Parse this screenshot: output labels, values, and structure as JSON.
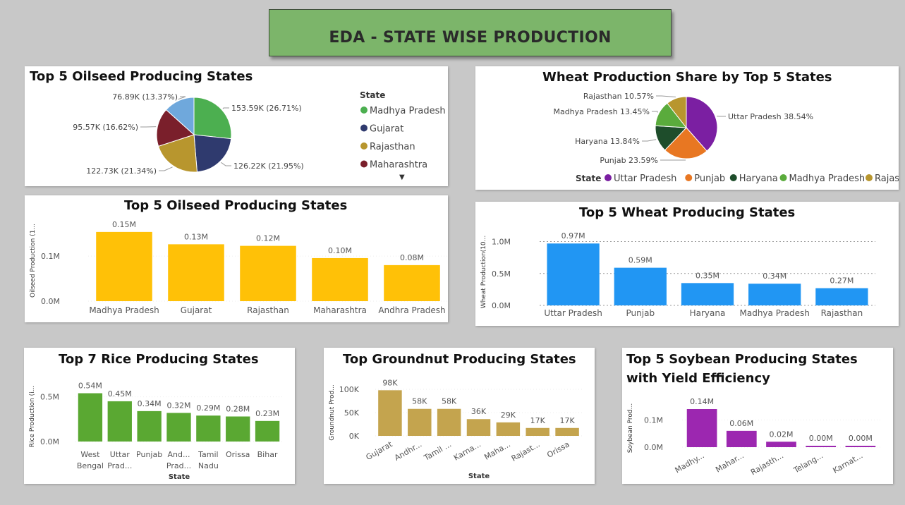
{
  "page": {
    "title": "EDA - STATE WISE PRODUCTION"
  },
  "legend_titles": {
    "oilseed_pie": "State",
    "wheat_pie": "State"
  },
  "chart_data": [
    {
      "id": "oilseed_pie",
      "type": "pie",
      "title": "Top 5 Oilseed Producing States",
      "slices": [
        {
          "label": "Madhya Pradesh",
          "value": 153.59,
          "display": "153.59K (26.71%)",
          "color": "#4caf50"
        },
        {
          "label": "Gujarat",
          "value": 126.22,
          "display": "126.22K (21.95%)",
          "color": "#2f3a6e"
        },
        {
          "label": "Rajasthan",
          "value": 122.73,
          "display": "122.73K (21.34%)",
          "color": "#b8962e"
        },
        {
          "label": "Maharashtra",
          "value": 95.57,
          "display": "95.57K (16.62%)",
          "color": "#7a1f2b"
        },
        {
          "label": "",
          "value": 76.89,
          "display": "76.89K (13.37%)",
          "color": "#6fa8dc"
        }
      ],
      "legend": [
        "Madhya Pradesh",
        "Gujarat",
        "Rajasthan",
        "Maharashtra"
      ],
      "legend_position": "right"
    },
    {
      "id": "wheat_pie",
      "type": "pie",
      "title": "Wheat Production Share by Top 5 States",
      "slices": [
        {
          "label": "Uttar Pradesh",
          "value": 38.54,
          "display": "Uttar Pradesh 38.54%",
          "color": "#7b1fa2"
        },
        {
          "label": "Punjab",
          "value": 23.59,
          "display": "Punjab 23.59%",
          "color": "#e87722"
        },
        {
          "label": "Haryana",
          "value": 13.84,
          "display": "Haryana 13.84%",
          "color": "#1e4d2b"
        },
        {
          "label": "Madhya Pradesh",
          "value": 13.45,
          "display": "Madhya Pradesh 13.45%",
          "color": "#5aab3c"
        },
        {
          "label": "Rajasthan",
          "value": 10.57,
          "display": "Rajasthan 10.57%",
          "color": "#b8962e"
        }
      ],
      "legend": [
        "Uttar Pradesh",
        "Punjab",
        "Haryana",
        "Madhya Pradesh",
        "Rajasthan"
      ],
      "legend_position": "bottom"
    },
    {
      "id": "oilseed_bar",
      "type": "bar",
      "title": "Top 5 Oilseed Producing States",
      "ylabel": "Oilseed Production (1...",
      "color": "#ffc107",
      "categories": [
        "Madhya Pradesh",
        "Gujarat",
        "Rajasthan",
        "Maharashtra",
        "Andhra Pradesh"
      ],
      "values": [
        153590,
        126220,
        122730,
        95570,
        80000
      ],
      "data_labels": [
        "0.15M",
        "0.13M",
        "0.12M",
        "0.10M",
        "0.08M"
      ],
      "yticks": [
        {
          "v": 0,
          "label": "0.0M"
        },
        {
          "v": 100000,
          "label": "0.1M"
        }
      ],
      "ylim": [
        0,
        180000
      ]
    },
    {
      "id": "wheat_bar",
      "type": "bar",
      "title": "Top 5 Wheat Producing States",
      "ylabel": "Wheat Production(10...",
      "color": "#2196f3",
      "categories": [
        "Uttar Pradesh",
        "Punjab",
        "Haryana",
        "Madhya Pradesh",
        "Rajasthan"
      ],
      "values": [
        970000,
        590000,
        350000,
        340000,
        270000
      ],
      "data_labels": [
        "0.97M",
        "0.59M",
        "0.35M",
        "0.34M",
        "0.27M"
      ],
      "yticks": [
        {
          "v": 0,
          "label": "0.0M"
        },
        {
          "v": 500000,
          "label": "0.5M"
        },
        {
          "v": 1000000,
          "label": "1.0M"
        }
      ],
      "ylim": [
        0,
        1050000
      ],
      "grid": true
    },
    {
      "id": "rice_bar",
      "type": "bar",
      "title": "Top 7 Rice Producing States",
      "ylabel": "Rice Production (i...",
      "xlabel": "State",
      "color": "#5aa832",
      "categories": [
        [
          "West",
          "Bengal"
        ],
        [
          "Uttar",
          "Prad..."
        ],
        [
          "Punjab"
        ],
        [
          "And...",
          "Prad..."
        ],
        [
          "Tamil",
          "Nadu"
        ],
        [
          "Orissa"
        ],
        [
          "Bihar"
        ]
      ],
      "values": [
        540000,
        450000,
        340000,
        320000,
        290000,
        280000,
        230000
      ],
      "data_labels": [
        "0.54M",
        "0.45M",
        "0.34M",
        "0.32M",
        "0.29M",
        "0.28M",
        "0.23M"
      ],
      "yticks": [
        {
          "v": 0,
          "label": "0.0M"
        },
        {
          "v": 500000,
          "label": "0.5M"
        }
      ],
      "ylim": [
        0,
        560000
      ]
    },
    {
      "id": "groundnut_bar",
      "type": "bar",
      "title": "Top Groundnut Producing States",
      "ylabel": "Groundnut Prod...",
      "xlabel": "State",
      "color": "#c4a44e",
      "categories": [
        "Gujarat",
        "Andhr...",
        "Tamil ...",
        "Karna...",
        "Maha...",
        "Rajast...",
        "Orissa"
      ],
      "values": [
        98000,
        58000,
        58000,
        36000,
        29000,
        17000,
        17000
      ],
      "data_labels": [
        "98K",
        "58K",
        "58K",
        "36K",
        "29K",
        "17K",
        "17K"
      ],
      "yticks": [
        {
          "v": 0,
          "label": "0K"
        },
        {
          "v": 50000,
          "label": "50K"
        },
        {
          "v": 100000,
          "label": "100K"
        }
      ],
      "ylim": [
        0,
        100000
      ],
      "rotated_labels": true
    },
    {
      "id": "soybean_bar",
      "type": "bar",
      "title": "Top 5 Soybean Producing States with Yield Efficiency",
      "title_lines": [
        "Top 5 Soybean Producing States",
        "with Yield Efficiency"
      ],
      "ylabel": "Soybean Prod...",
      "color": "#9c27b0",
      "categories": [
        "Madhy...",
        "Mahar...",
        "Rajasth...",
        "Telang...",
        "Karnat..."
      ],
      "values": [
        140000,
        60000,
        20000,
        3000,
        3000
      ],
      "data_labels": [
        "0.14M",
        "0.06M",
        "0.02M",
        "0.00M",
        "0.00M"
      ],
      "yticks": [
        {
          "v": 0,
          "label": "0.0M"
        },
        {
          "v": 100000,
          "label": "0.1M"
        }
      ],
      "ylim": [
        0,
        140000
      ],
      "rotated_labels": true
    }
  ]
}
